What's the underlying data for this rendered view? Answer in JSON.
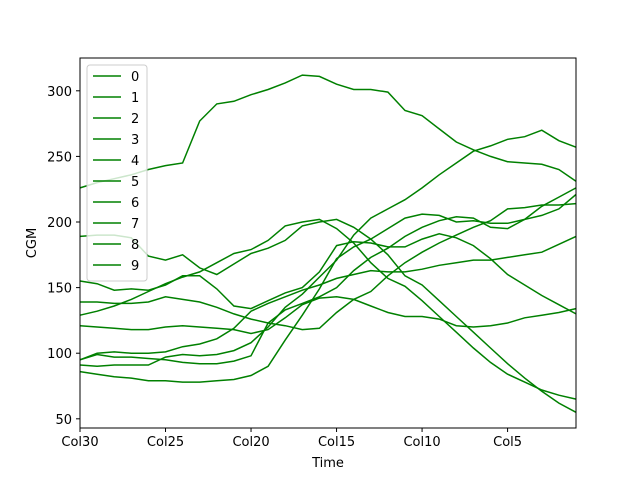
{
  "chart_data": {
    "type": "line",
    "title": "",
    "xlabel": "Time",
    "ylabel": "CGM",
    "x_ticks": [
      "Col30",
      "Col25",
      "Col20",
      "Col15",
      "Col10",
      "Col5"
    ],
    "x": [
      "Col30",
      "Col29",
      "Col28",
      "Col27",
      "Col26",
      "Col25",
      "Col24",
      "Col23",
      "Col22",
      "Col21",
      "Col20",
      "Col19",
      "Col18",
      "Col17",
      "Col16",
      "Col15",
      "Col14",
      "Col13",
      "Col12",
      "Col11",
      "Col10",
      "Col9",
      "Col8",
      "Col7",
      "Col6",
      "Col5",
      "Col4",
      "Col3",
      "Col2",
      "Col1"
    ],
    "xlim": [
      0,
      29
    ],
    "ylim": [
      43,
      325
    ],
    "y_ticks": [
      50,
      100,
      150,
      200,
      250,
      300
    ],
    "line_color": "#008000",
    "legend_position": "upper left",
    "series": [
      {
        "name": "0",
        "values": [
          226,
          230,
          233,
          236,
          240,
          243,
          245,
          277,
          290,
          292,
          297,
          301,
          306,
          312,
          311,
          305,
          301,
          301,
          299,
          285,
          281,
          271,
          261,
          255,
          250,
          246,
          245,
          244,
          240,
          231
        ]
      },
      {
        "name": "1",
        "values": [
          189,
          190,
          190,
          188,
          174,
          171,
          175,
          165,
          160,
          168,
          176,
          180,
          186,
          197,
          200,
          202,
          196,
          187,
          175,
          159,
          152,
          140,
          128,
          116,
          104,
          92,
          81,
          71,
          62,
          55
        ]
      },
      {
        "name": "2",
        "values": [
          155,
          153,
          148,
          149,
          148,
          152,
          159,
          159,
          149,
          136,
          134,
          140,
          146,
          150,
          162,
          182,
          185,
          184,
          181,
          181,
          187,
          191,
          188,
          182,
          172,
          160,
          152,
          144,
          137,
          130
        ]
      },
      {
        "name": "3",
        "values": [
          139,
          139,
          138,
          138,
          139,
          143,
          141,
          139,
          135,
          130,
          126,
          123,
          121,
          118,
          119,
          131,
          141,
          147,
          159,
          169,
          177,
          184,
          190,
          196,
          201,
          210,
          211,
          213,
          213,
          214
        ]
      },
      {
        "name": "4",
        "values": [
          129,
          132,
          136,
          141,
          147,
          153,
          158,
          162,
          169,
          176,
          179,
          186,
          197,
          200,
          202,
          195,
          184,
          169,
          157,
          151,
          140,
          128,
          116,
          104,
          93,
          84,
          78,
          72,
          68,
          65
        ]
      },
      {
        "name": "5",
        "values": [
          121,
          120,
          119,
          118,
          118,
          120,
          121,
          120,
          119,
          118,
          115,
          118,
          127,
          137,
          142,
          143,
          141,
          136,
          131,
          128,
          128,
          126,
          121,
          120,
          121,
          123,
          127,
          129,
          131,
          134
        ]
      },
      {
        "name": "6",
        "values": [
          95,
          99,
          97,
          97,
          96,
          95,
          93,
          92,
          92,
          94,
          98,
          123,
          133,
          138,
          143,
          150,
          163,
          173,
          180,
          189,
          196,
          201,
          204,
          203,
          196,
          195,
          202,
          205,
          210,
          221
        ]
      },
      {
        "name": "7",
        "values": [
          91,
          90,
          91,
          91,
          91,
          97,
          99,
          98,
          99,
          102,
          108,
          120,
          135,
          145,
          158,
          171,
          190,
          203,
          210,
          217,
          226,
          236,
          245,
          254,
          258,
          263,
          265,
          270,
          262,
          257
        ]
      },
      {
        "name": "8",
        "values": [
          95,
          100,
          101,
          100,
          100,
          101,
          105,
          107,
          111,
          119,
          132,
          138,
          143,
          148,
          152,
          157,
          160,
          163,
          162,
          162,
          164,
          167,
          169,
          171,
          171,
          173,
          175,
          177,
          183,
          189
        ]
      },
      {
        "name": "9",
        "values": [
          86,
          84,
          82,
          81,
          79,
          79,
          78,
          78,
          79,
          80,
          83,
          90,
          110,
          129,
          149,
          172,
          181,
          187,
          195,
          203,
          206,
          205,
          200,
          201,
          199,
          199,
          202,
          212,
          219,
          226
        ]
      }
    ]
  }
}
